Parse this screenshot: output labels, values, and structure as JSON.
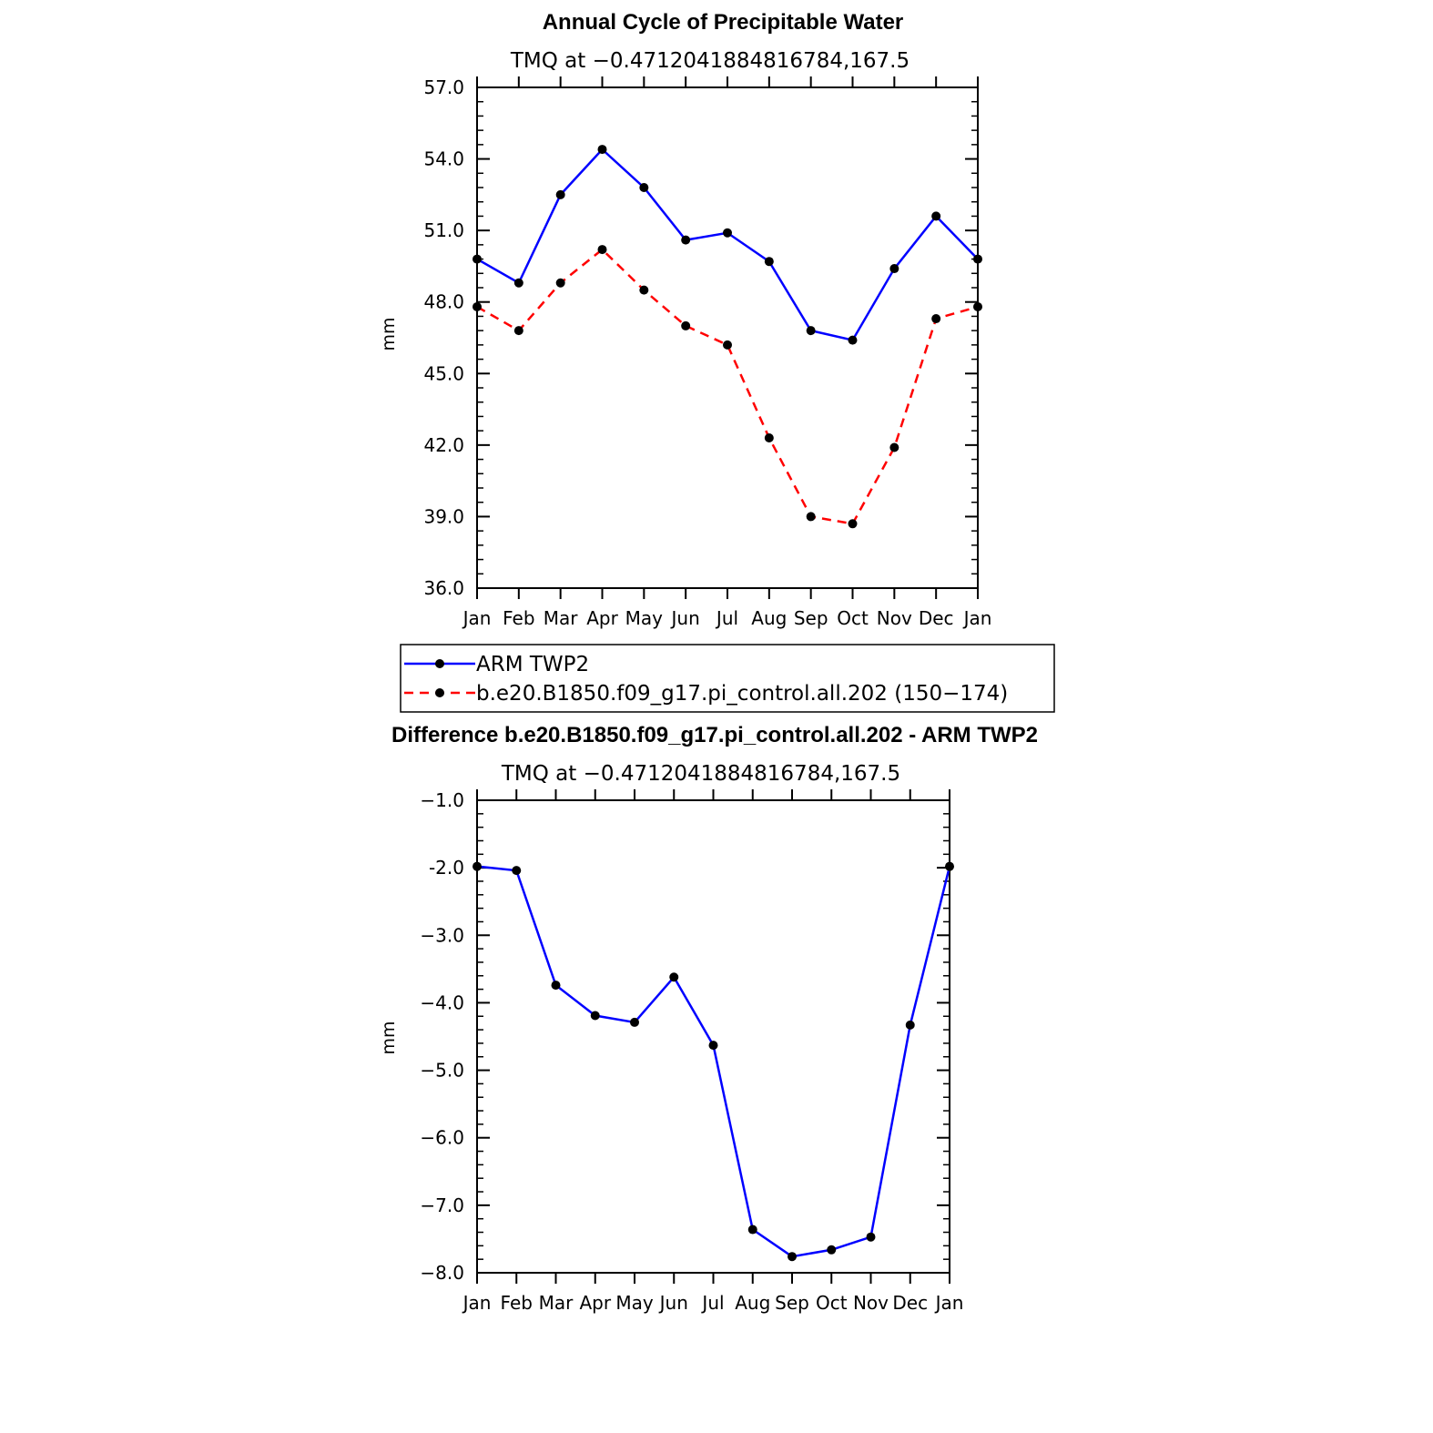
{
  "chart_data": [
    {
      "type": "line",
      "title": "Annual Cycle of Precipitable Water",
      "subtitle": "TMQ at −0.4712041884816784,167.5",
      "ylabel": "mm",
      "xlabel": "",
      "categories": [
        "Jan",
        "Feb",
        "Mar",
        "Apr",
        "May",
        "Jun",
        "Jul",
        "Aug",
        "Sep",
        "Oct",
        "Nov",
        "Dec",
        "Jan"
      ],
      "ylim": [
        36.0,
        57.0
      ],
      "yticks": [
        36.0,
        39.0,
        42.0,
        45.0,
        48.0,
        51.0,
        54.0,
        57.0
      ],
      "ytick_labels": [
        "36.0",
        "39.0",
        "42.0",
        "45.0",
        "48.0",
        "51.0",
        "54.0",
        "57.0"
      ],
      "series": [
        {
          "name": "ARM TWP2",
          "color": "#0000ff",
          "dash": "solid",
          "values": [
            49.8,
            48.8,
            52.5,
            54.4,
            52.8,
            50.6,
            50.9,
            49.7,
            46.8,
            46.4,
            49.4,
            51.6,
            49.8
          ]
        },
        {
          "name": "b.e20.B1850.f09_g17.pi_control.all.202 (150−174)",
          "color": "#ff0000",
          "dash": "dashed",
          "values": [
            47.8,
            46.8,
            48.8,
            50.2,
            48.5,
            47.0,
            46.2,
            42.3,
            39.0,
            38.7,
            41.9,
            47.3,
            47.8
          ]
        }
      ],
      "grid": false,
      "legend": "below"
    },
    {
      "type": "line",
      "title": "Difference b.e20.B1850.f09_g17.pi_control.all.202 - ARM TWP2",
      "subtitle": "TMQ at −0.4712041884816784,167.5",
      "ylabel": "mm",
      "xlabel": "",
      "categories": [
        "Jan",
        "Feb",
        "Mar",
        "Apr",
        "May",
        "Jun",
        "Jul",
        "Aug",
        "Sep",
        "Oct",
        "Nov",
        "Dec",
        "Jan"
      ],
      "ylim": [
        -8.0,
        -1.0
      ],
      "yticks": [
        -8.0,
        -7.0,
        -6.0,
        -5.0,
        -4.0,
        -3.0,
        -2.0,
        -1.0
      ],
      "ytick_labels": [
        "−8.0",
        "−7.0",
        "−6.0",
        "−5.0",
        "−4.0",
        "−3.0",
        "-2.0",
        "−1.0"
      ],
      "series": [
        {
          "color": "#0000ff",
          "dash": "solid",
          "values": [
            -1.98,
            -2.04,
            -3.74,
            -4.19,
            -4.29,
            -3.62,
            -4.63,
            -7.36,
            -7.76,
            -7.66,
            -7.47,
            -4.33,
            -1.98
          ]
        }
      ],
      "grid": false,
      "legend": "none"
    }
  ]
}
